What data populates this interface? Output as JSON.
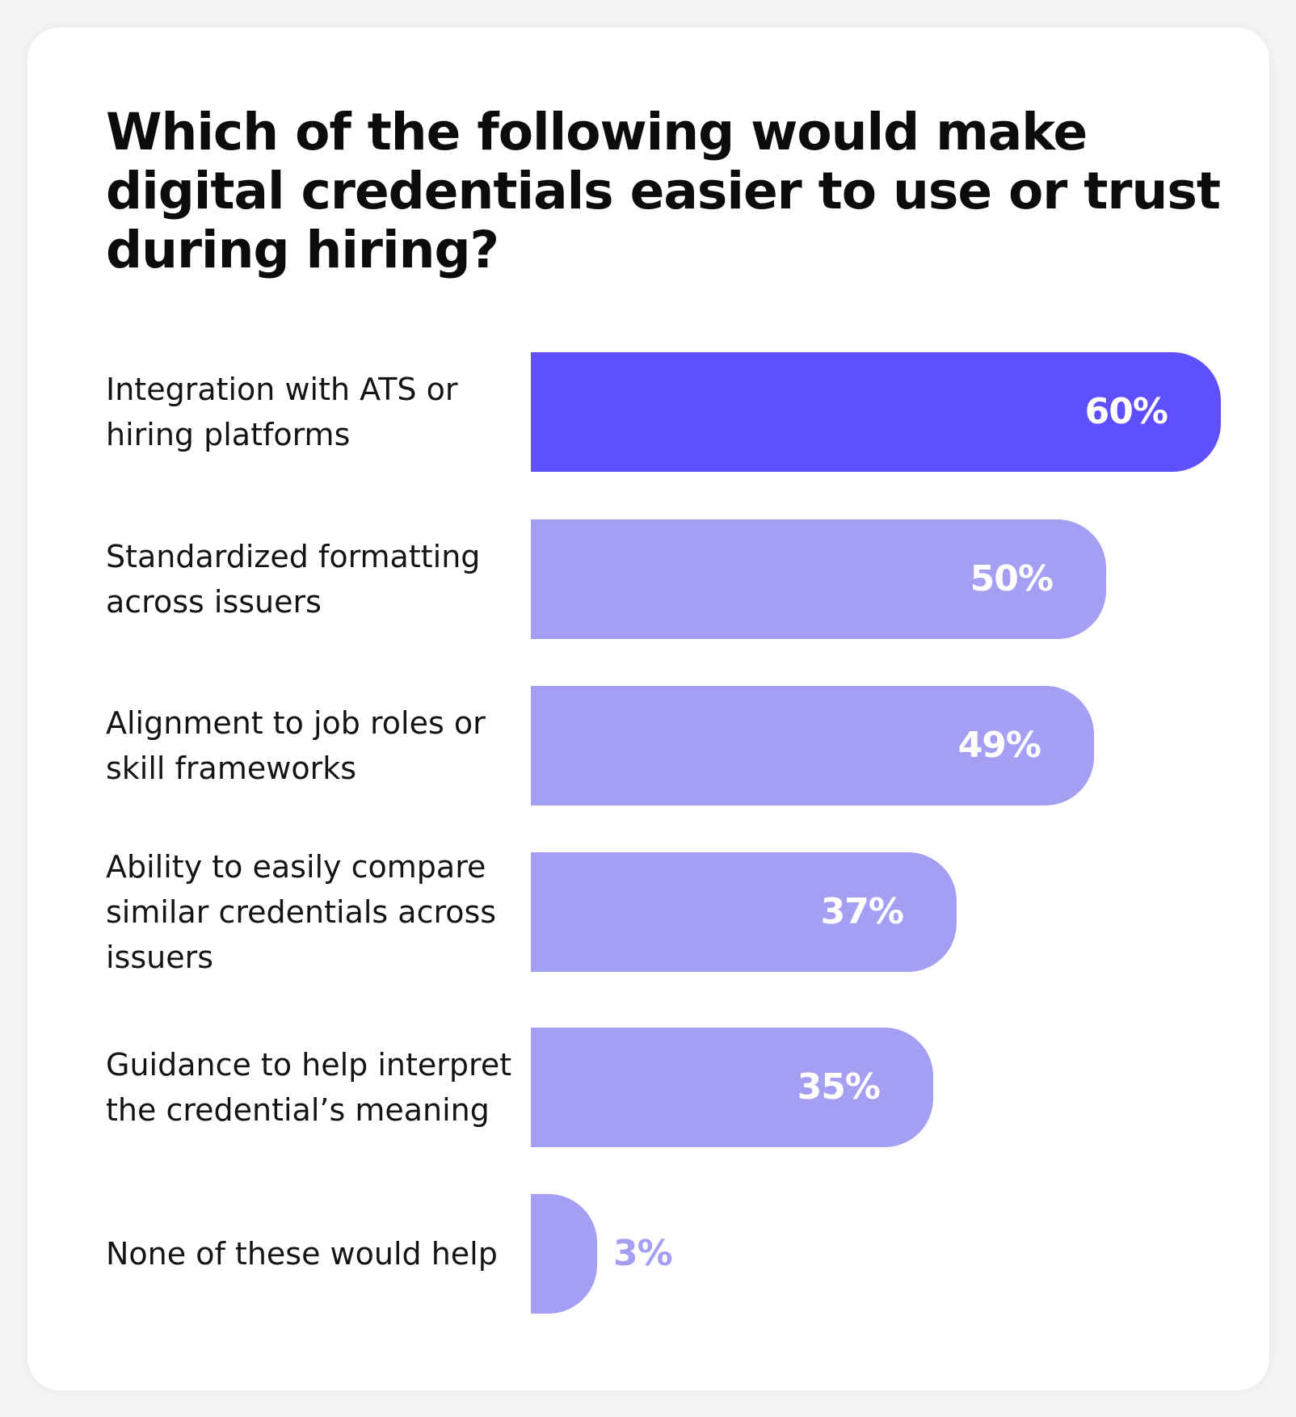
{
  "chart_data": {
    "type": "bar",
    "orientation": "horizontal",
    "title": "Which of the following would make digital credentials easier to use or trust during hiring?",
    "categories": [
      "Integration with ATS or hiring platforms",
      "Standardized formatting across issuers",
      "Alignment to job roles or skill frameworks",
      "Ability to easily compare similar credentials across issuers",
      "Guidance to help interpret the credential’s meaning",
      "None of these would help"
    ],
    "values": [
      60,
      50,
      49,
      37,
      35,
      3
    ],
    "value_labels": [
      "60%",
      "50%",
      "49%",
      "37%",
      "35%",
      "3%"
    ],
    "unit": "%",
    "xlim": [
      0,
      60
    ],
    "grid": false,
    "legend": "none",
    "colors": {
      "highlight": "#5e50ff",
      "default": "#a59ff4",
      "label_inside": "#ffffff",
      "label_outside": "#a59ff4"
    }
  }
}
